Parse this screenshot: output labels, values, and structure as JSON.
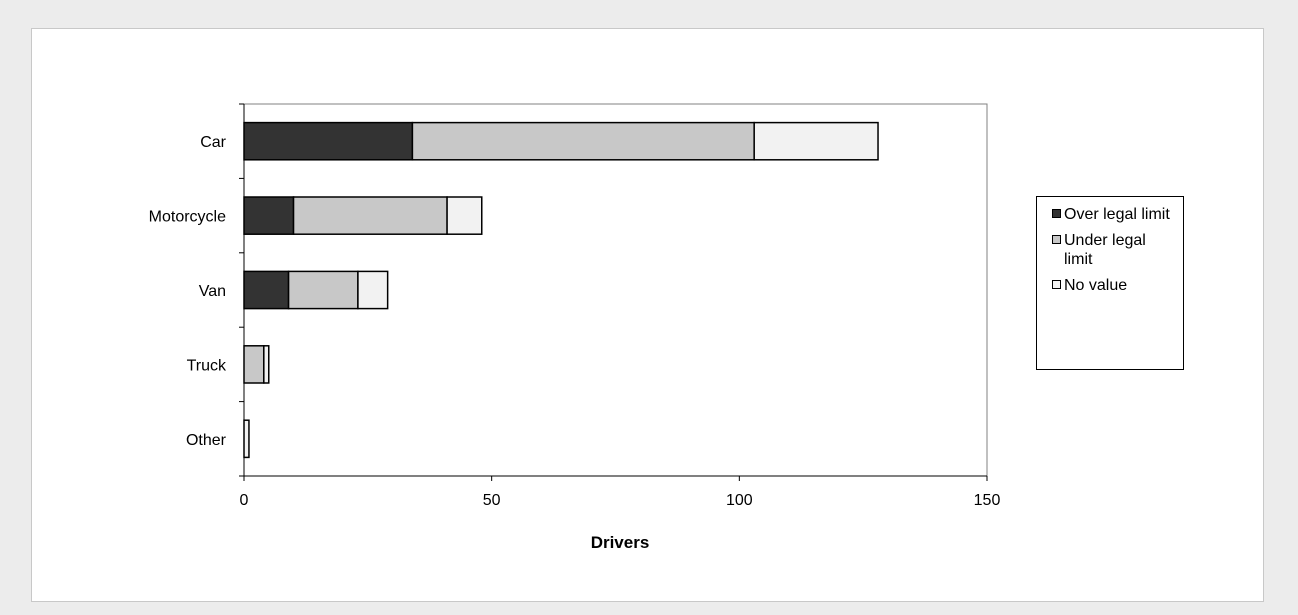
{
  "chart_data": {
    "type": "bar",
    "orientation": "horizontal",
    "stacked": true,
    "categories": [
      "Car",
      "Motorcycle",
      "Van",
      "Truck",
      "Other"
    ],
    "series": [
      {
        "name": "Over legal limit",
        "values": [
          34,
          10,
          9,
          0,
          0
        ],
        "color": "#333333"
      },
      {
        "name": "Under legal limit",
        "values": [
          69,
          31,
          14,
          4,
          0
        ],
        "color": "#c8c8c8"
      },
      {
        "name": "No value",
        "values": [
          25,
          7,
          6,
          1,
          1
        ],
        "color": "#f2f2f2"
      }
    ],
    "xlabel": "Drivers",
    "ylabel": "",
    "xlim": [
      0,
      150
    ],
    "xticks": [
      "0",
      "50",
      "100",
      "150"
    ],
    "grid": false,
    "legend_position": "right"
  }
}
